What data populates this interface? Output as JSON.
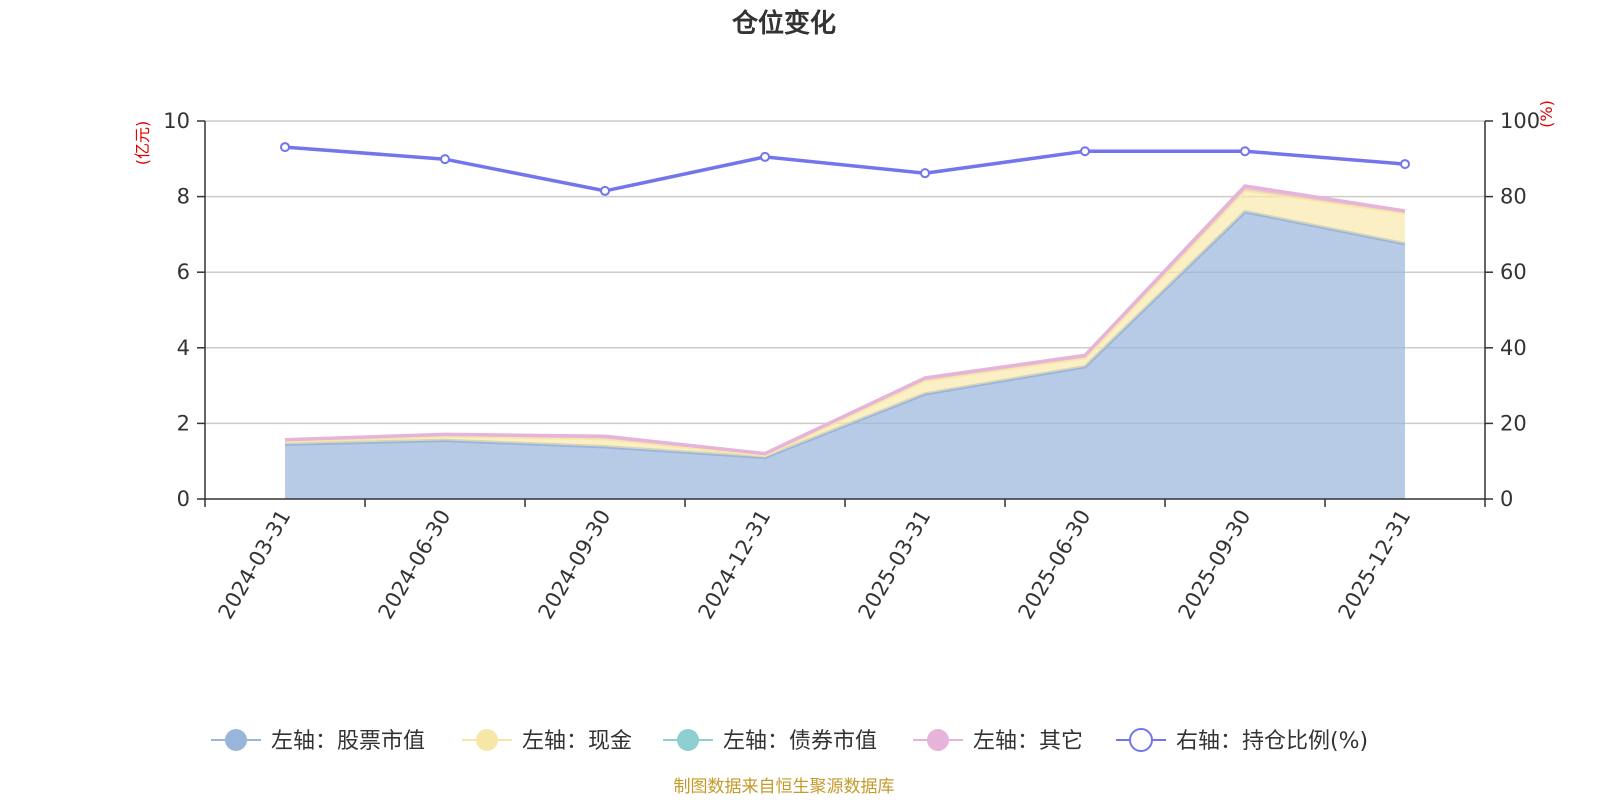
{
  "chart_data": {
    "type": "area",
    "title": "仓位变化",
    "categories": [
      "2024-03-31",
      "2024-06-30",
      "2024-09-30",
      "2024-12-31",
      "2025-03-31",
      "2025-06-30",
      "2025-09-30",
      "2025-12-31"
    ],
    "left_axis": {
      "unit": "(亿元)",
      "ylim": [
        0,
        10
      ],
      "ticks": [
        0,
        2,
        4,
        6,
        8,
        10
      ]
    },
    "right_axis": {
      "unit": "(%)",
      "ylim": [
        0,
        100
      ],
      "ticks": [
        0,
        20,
        40,
        60,
        80,
        100
      ]
    },
    "stacked_series": [
      {
        "name": "左轴：股票市值",
        "color": "#9ab5dc",
        "values": [
          1.45,
          1.55,
          1.38,
          1.1,
          2.78,
          3.5,
          7.6,
          6.75
        ]
      },
      {
        "name": "左轴：现金",
        "color": "#f7e7a6",
        "values": [
          0.08,
          0.12,
          0.22,
          0.06,
          0.36,
          0.24,
          0.58,
          0.82
        ]
      },
      {
        "name": "左轴：债券市值",
        "color": "#8ecfd1",
        "values": [
          0,
          0,
          0,
          0,
          0,
          0,
          0,
          0
        ]
      },
      {
        "name": "左轴：其它",
        "color": "#e6b3da",
        "values": [
          0.04,
          0.04,
          0.06,
          0.04,
          0.06,
          0.06,
          0.1,
          0.05
        ]
      }
    ],
    "line_series": [
      {
        "name": "右轴：持仓比例(%)",
        "color": "#7275ec",
        "values": [
          93.1,
          89.9,
          81.5,
          90.5,
          86.2,
          92.0,
          92.0,
          88.6
        ]
      }
    ],
    "grid": true,
    "legend_position": "bottom"
  },
  "source_note": "制图数据来自恒生聚源数据库"
}
